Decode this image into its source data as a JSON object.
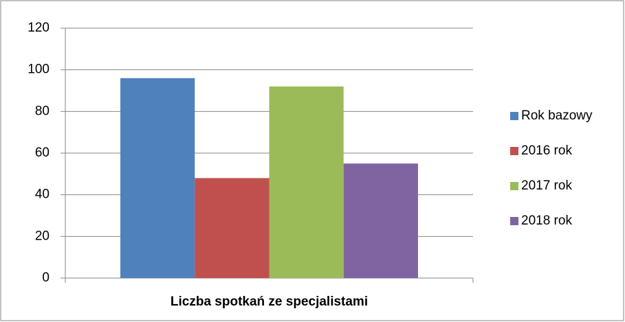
{
  "chart_data": {
    "type": "bar",
    "categories": [
      "Liczba spotkań ze specjalistami"
    ],
    "series": [
      {
        "name": "Rok bazowy",
        "color": "#4f81bd",
        "values": [
          96
        ]
      },
      {
        "name": "2016 rok",
        "color": "#c0504d",
        "values": [
          48
        ]
      },
      {
        "name": "2017 rok",
        "color": "#9bbb59",
        "values": [
          92
        ]
      },
      {
        "name": "2018 rok",
        "color": "#8064a2",
        "values": [
          55
        ]
      }
    ],
    "ylim": [
      0,
      120
    ],
    "yticks": [
      0,
      20,
      40,
      60,
      80,
      100,
      120
    ],
    "grid": true,
    "legend": "right"
  }
}
